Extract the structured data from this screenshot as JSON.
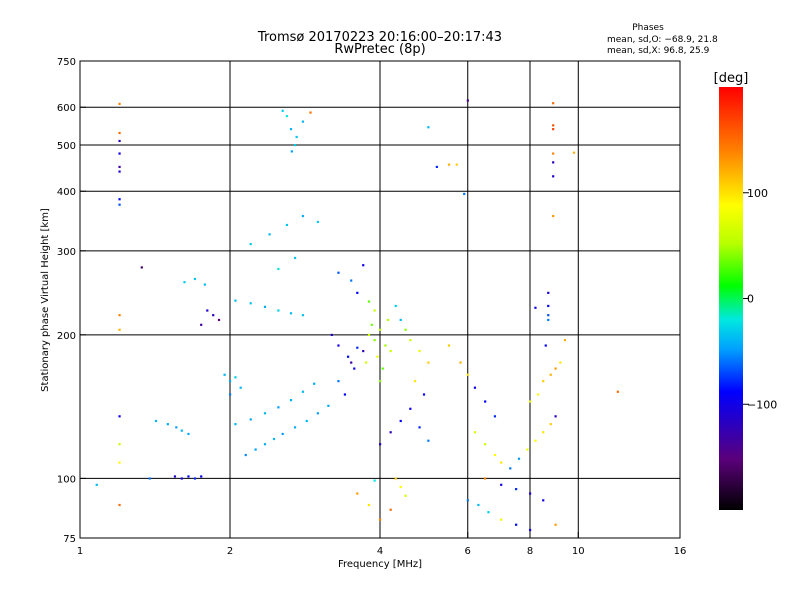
{
  "title_line1": "Tromsø 20170223 20:16:00–20:17:43",
  "title_line2": "RwPretec (8p)",
  "stats": {
    "heading": "Phases",
    "line1": "mean, sd,O: −68.9, 21.8",
    "line2": "mean, sd,X:  96.8, 25.9"
  },
  "colorbar": {
    "unit_label": "[deg]",
    "range": [
      -200,
      200
    ],
    "ticks": [
      100,
      0,
      -100
    ],
    "tick_labels": [
      "100",
      "0",
      "−100"
    ]
  },
  "chart_data": {
    "type": "scatter",
    "title": "Tromsø 20170223 20:16:00–20:17:43",
    "subtitle": "RwPretec (8p)",
    "xlabel": "Frequency [MHz]",
    "ylabel": "Stationary phase Virtual Height [km]",
    "xscale": "log",
    "yscale": "log",
    "xlim": [
      1,
      16
    ],
    "ylim": [
      75,
      750
    ],
    "xticks": [
      1,
      2,
      4,
      6,
      8,
      10,
      16
    ],
    "xtick_labels": [
      "1",
      "2",
      "4",
      "6",
      "8",
      "10",
      "16"
    ],
    "yticks": [
      75,
      100,
      200,
      300,
      400,
      500,
      600,
      750
    ],
    "ytick_labels": [
      "75",
      "100",
      "200",
      "300",
      "400",
      "500",
      "600",
      "750"
    ],
    "x_gridlines": [
      1,
      2,
      4,
      6,
      8,
      10
    ],
    "y_gridlines": [
      100,
      200,
      300,
      400,
      500,
      600
    ],
    "grid": true,
    "color_by": "phase [deg]",
    "points": [
      [
        1.08,
        97,
        -40
      ],
      [
        1.2,
        610,
        140
      ],
      [
        1.2,
        530,
        150
      ],
      [
        1.2,
        510,
        -120
      ],
      [
        1.2,
        480,
        -100
      ],
      [
        1.2,
        450,
        -130
      ],
      [
        1.2,
        440,
        -110
      ],
      [
        1.2,
        385,
        -90
      ],
      [
        1.2,
        375,
        -70
      ],
      [
        1.2,
        220,
        140
      ],
      [
        1.2,
        205,
        120
      ],
      [
        1.2,
        135,
        -100
      ],
      [
        1.2,
        118,
        60
      ],
      [
        1.2,
        108,
        90
      ],
      [
        1.2,
        88,
        150
      ],
      [
        1.33,
        277,
        -160
      ],
      [
        1.38,
        100,
        -60
      ],
      [
        1.42,
        132,
        -40
      ],
      [
        1.5,
        130,
        -45
      ],
      [
        1.56,
        128,
        -50
      ],
      [
        1.6,
        126,
        -40
      ],
      [
        1.65,
        124,
        -45
      ],
      [
        1.55,
        101,
        -110
      ],
      [
        1.6,
        100,
        -100
      ],
      [
        1.65,
        101,
        -90
      ],
      [
        1.7,
        100,
        -80
      ],
      [
        1.75,
        101,
        -95
      ],
      [
        1.62,
        258,
        -30
      ],
      [
        1.7,
        262,
        -35
      ],
      [
        1.78,
        255,
        -40
      ],
      [
        1.8,
        225,
        -110
      ],
      [
        1.85,
        220,
        -120
      ],
      [
        1.9,
        215,
        -150
      ],
      [
        1.75,
        210,
        -130
      ],
      [
        1.95,
        165,
        -40
      ],
      [
        2.0,
        160,
        -45
      ],
      [
        2.05,
        163,
        -30
      ],
      [
        2.0,
        150,
        -60
      ],
      [
        2.1,
        155,
        -40
      ],
      [
        2.15,
        112,
        -55
      ],
      [
        2.25,
        115,
        -50
      ],
      [
        2.35,
        118,
        -45
      ],
      [
        2.45,
        121,
        -40
      ],
      [
        2.55,
        124,
        -50
      ],
      [
        2.7,
        128,
        -45
      ],
      [
        2.85,
        132,
        -40
      ],
      [
        3.0,
        137,
        -50
      ],
      [
        3.15,
        142,
        -45
      ],
      [
        2.05,
        130,
        -40
      ],
      [
        2.2,
        133,
        -45
      ],
      [
        2.35,
        137,
        -40
      ],
      [
        2.5,
        141,
        -50
      ],
      [
        2.65,
        146,
        -45
      ],
      [
        2.8,
        152,
        -40
      ],
      [
        2.95,
        158,
        -45
      ],
      [
        2.05,
        236,
        -40
      ],
      [
        2.2,
        233,
        -35
      ],
      [
        2.35,
        229,
        -45
      ],
      [
        2.5,
        225,
        -30
      ],
      [
        2.65,
        222,
        -40
      ],
      [
        2.8,
        220,
        -35
      ],
      [
        2.2,
        310,
        -30
      ],
      [
        2.4,
        325,
        -40
      ],
      [
        2.6,
        340,
        -35
      ],
      [
        2.8,
        355,
        -45
      ],
      [
        3.0,
        345,
        -30
      ],
      [
        2.5,
        275,
        -20
      ],
      [
        2.7,
        290,
        -35
      ],
      [
        2.55,
        590,
        -30
      ],
      [
        2.6,
        575,
        -20
      ],
      [
        2.65,
        540,
        -40
      ],
      [
        2.7,
        500,
        -30
      ],
      [
        2.66,
        485,
        -50
      ],
      [
        2.72,
        520,
        -35
      ],
      [
        2.8,
        560,
        -40
      ],
      [
        2.9,
        585,
        150
      ],
      [
        3.2,
        200,
        -110
      ],
      [
        3.3,
        190,
        -100
      ],
      [
        3.45,
        180,
        -90
      ],
      [
        3.5,
        175,
        -130
      ],
      [
        3.6,
        188,
        -80
      ],
      [
        3.7,
        185,
        -120
      ],
      [
        3.3,
        160,
        -60
      ],
      [
        3.4,
        150,
        -90
      ],
      [
        3.55,
        170,
        -100
      ],
      [
        3.3,
        270,
        -70
      ],
      [
        3.5,
        260,
        -60
      ],
      [
        3.6,
        245,
        -90
      ],
      [
        3.8,
        235,
        30
      ],
      [
        3.9,
        225,
        60
      ],
      [
        3.7,
        280,
        -100
      ],
      [
        3.8,
        200,
        60
      ],
      [
        3.9,
        195,
        40
      ],
      [
        4.0,
        205,
        50
      ],
      [
        4.1,
        190,
        45
      ],
      [
        3.95,
        180,
        80
      ],
      [
        4.05,
        170,
        30
      ],
      [
        4.2,
        185,
        60
      ],
      [
        3.85,
        210,
        35
      ],
      [
        4.15,
        215,
        50
      ],
      [
        3.75,
        175,
        70
      ],
      [
        4.0,
        160,
        40
      ],
      [
        4.3,
        230,
        -30
      ],
      [
        4.4,
        215,
        -40
      ],
      [
        4.5,
        205,
        40
      ],
      [
        4.6,
        195,
        60
      ],
      [
        4.8,
        185,
        80
      ],
      [
        5.0,
        175,
        110
      ],
      [
        4.7,
        160,
        100
      ],
      [
        4.9,
        150,
        -90
      ],
      [
        4.3,
        100,
        110
      ],
      [
        4.4,
        96,
        90
      ],
      [
        4.5,
        92,
        70
      ],
      [
        4.2,
        86,
        150
      ],
      [
        4.0,
        82,
        140
      ],
      [
        3.8,
        88,
        100
      ],
      [
        3.6,
        93,
        130
      ],
      [
        3.9,
        99,
        -20
      ],
      [
        4.0,
        118,
        -110
      ],
      [
        4.2,
        125,
        -120
      ],
      [
        4.4,
        132,
        -90
      ],
      [
        4.6,
        140,
        -100
      ],
      [
        4.8,
        128,
        -80
      ],
      [
        5.0,
        120,
        -60
      ],
      [
        5.0,
        545,
        -40
      ],
      [
        5.5,
        455,
        120
      ],
      [
        5.7,
        455,
        110
      ],
      [
        5.2,
        450,
        -80
      ],
      [
        6.0,
        620,
        -140
      ],
      [
        5.9,
        395,
        -60
      ],
      [
        5.5,
        190,
        110
      ],
      [
        5.8,
        175,
        120
      ],
      [
        6.0,
        165,
        100
      ],
      [
        6.2,
        155,
        -100
      ],
      [
        6.5,
        145,
        -90
      ],
      [
        6.8,
        135,
        -80
      ],
      [
        6.2,
        125,
        70
      ],
      [
        6.5,
        118,
        60
      ],
      [
        6.8,
        112,
        90
      ],
      [
        7.0,
        108,
        100
      ],
      [
        7.3,
        105,
        -60
      ],
      [
        7.6,
        110,
        -50
      ],
      [
        7.9,
        115,
        80
      ],
      [
        8.2,
        120,
        90
      ],
      [
        8.5,
        125,
        100
      ],
      [
        8.8,
        130,
        110
      ],
      [
        9.0,
        135,
        -120
      ],
      [
        6.0,
        90,
        -60
      ],
      [
        6.3,
        88,
        -40
      ],
      [
        6.6,
        85,
        -30
      ],
      [
        7.0,
        82,
        80
      ],
      [
        7.5,
        80,
        -90
      ],
      [
        8.0,
        78,
        -100
      ],
      [
        6.5,
        100,
        140
      ],
      [
        7.0,
        97,
        -100
      ],
      [
        7.5,
        95,
        -80
      ],
      [
        8.0,
        93,
        -110
      ],
      [
        8.5,
        90,
        -100
      ],
      [
        8.5,
        160,
        110
      ],
      [
        8.8,
        165,
        120
      ],
      [
        9.0,
        170,
        130
      ],
      [
        9.2,
        175,
        100
      ],
      [
        8.3,
        150,
        90
      ],
      [
        8.0,
        145,
        80
      ],
      [
        9.4,
        195,
        120
      ],
      [
        8.6,
        190,
        -90
      ],
      [
        8.2,
        228,
        -100
      ],
      [
        8.9,
        612,
        150
      ],
      [
        8.9,
        550,
        160
      ],
      [
        8.9,
        540,
        170
      ],
      [
        8.9,
        480,
        140
      ],
      [
        8.9,
        460,
        -120
      ],
      [
        8.9,
        430,
        -110
      ],
      [
        8.9,
        355,
        130
      ],
      [
        8.7,
        245,
        -100
      ],
      [
        8.7,
        230,
        -90
      ],
      [
        8.7,
        220,
        -70
      ],
      [
        8.7,
        215,
        -60
      ],
      [
        9.0,
        80,
        130
      ],
      [
        9.8,
        482,
        120
      ],
      [
        12.0,
        152,
        150
      ]
    ]
  }
}
